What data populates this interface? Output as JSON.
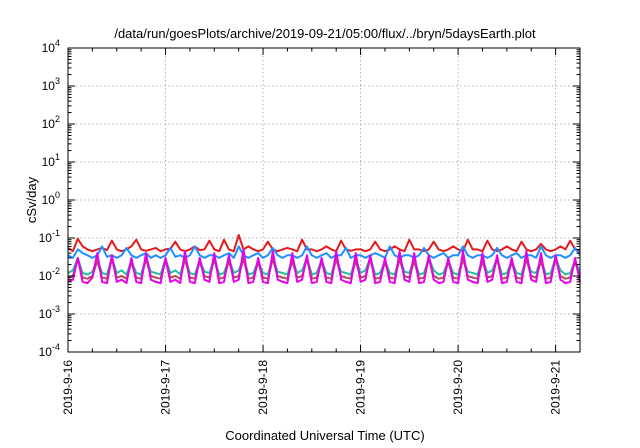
{
  "chart_data": {
    "type": "line",
    "title": "/data/run/goesPlots/archive/2019-09-21/05:00/flux/../bryn/5daysEarth.plot",
    "xlabel": "Coordinated Universal Time (UTC)",
    "ylabel": "cSv/day",
    "y_scale": "log",
    "ylim_exp": [
      -4,
      4
    ],
    "y_ticks": [
      {
        "base": "10",
        "exp": "-4"
      },
      {
        "base": "10",
        "exp": "-3"
      },
      {
        "base": "10",
        "exp": "-2"
      },
      {
        "base": "10",
        "exp": "-1"
      },
      {
        "base": "10",
        "exp": "0"
      },
      {
        "base": "10",
        "exp": "1"
      },
      {
        "base": "10",
        "exp": "2"
      },
      {
        "base": "10",
        "exp": "3"
      },
      {
        "base": "10",
        "exp": "4"
      }
    ],
    "x_range_days": [
      0,
      5.25
    ],
    "x_ticks": [
      "2019-9-16",
      "2019-9-17",
      "2019-9-18",
      "2019-9-19",
      "2019-9-20",
      "2019-9-21"
    ],
    "grid": true,
    "colors": [
      "#e41a1c",
      "#1e90ff",
      "#20c0a0",
      "#b05050",
      "#e800e8"
    ],
    "series": [
      {
        "color": "#e41a1c",
        "values": [
          0.055,
          0.045,
          0.095,
          0.06,
          0.05,
          0.045,
          0.05,
          0.055,
          0.048,
          0.085,
          0.05,
          0.045,
          0.05,
          0.06,
          0.09,
          0.05,
          0.046,
          0.05,
          0.055,
          0.045,
          0.05,
          0.052,
          0.08,
          0.05,
          0.045,
          0.05,
          0.06,
          0.048,
          0.05,
          0.085,
          0.05,
          0.045,
          0.09,
          0.05,
          0.045,
          0.12,
          0.05,
          0.06,
          0.05,
          0.045,
          0.05,
          0.08,
          0.05,
          0.045,
          0.05,
          0.055,
          0.05,
          0.045,
          0.09,
          0.05,
          0.05,
          0.045,
          0.05,
          0.06,
          0.05,
          0.045,
          0.085,
          0.05,
          0.046,
          0.05,
          0.05,
          0.045,
          0.05,
          0.08,
          0.05,
          0.045,
          0.05,
          0.06,
          0.05,
          0.045,
          0.09,
          0.05,
          0.05,
          0.045,
          0.05,
          0.08,
          0.05,
          0.045,
          0.05,
          0.06,
          0.05,
          0.045,
          0.09,
          0.05,
          0.05,
          0.045,
          0.085,
          0.05,
          0.045,
          0.05,
          0.06,
          0.05,
          0.045,
          0.08,
          0.05,
          0.045,
          0.05,
          0.07,
          0.05,
          0.045,
          0.05,
          0.06,
          0.05,
          0.085,
          0.05,
          0.045
        ]
      },
      {
        "color": "#1e90ff",
        "values": [
          0.035,
          0.03,
          0.05,
          0.04,
          0.035,
          0.03,
          0.035,
          0.06,
          0.032,
          0.035,
          0.03,
          0.035,
          0.055,
          0.035,
          0.03,
          0.035,
          0.04,
          0.03,
          0.035,
          0.03,
          0.035,
          0.055,
          0.032,
          0.035,
          0.03,
          0.035,
          0.06,
          0.035,
          0.03,
          0.035,
          0.035,
          0.03,
          0.035,
          0.04,
          0.03,
          0.06,
          0.035,
          0.03,
          0.035,
          0.04,
          0.03,
          0.035,
          0.055,
          0.035,
          0.03,
          0.035,
          0.035,
          0.03,
          0.035,
          0.06,
          0.035,
          0.03,
          0.035,
          0.04,
          0.03,
          0.035,
          0.035,
          0.055,
          0.03,
          0.035,
          0.035,
          0.03,
          0.035,
          0.04,
          0.035,
          0.03,
          0.06,
          0.035,
          0.03,
          0.035,
          0.035,
          0.03,
          0.035,
          0.055,
          0.035,
          0.03,
          0.035,
          0.04,
          0.03,
          0.035,
          0.035,
          0.06,
          0.035,
          0.03,
          0.035,
          0.035,
          0.03,
          0.035,
          0.055,
          0.035,
          0.03,
          0.035,
          0.04,
          0.03,
          0.035,
          0.035,
          0.03,
          0.06,
          0.035,
          0.03,
          0.035,
          0.035,
          0.03,
          0.035,
          0.055,
          0.035
        ]
      },
      {
        "color": "#20c0a0",
        "values": [
          0.012,
          0.014,
          0.03,
          0.012,
          0.011,
          0.013,
          0.028,
          0.012,
          0.011,
          0.03,
          0.012,
          0.014,
          0.011,
          0.025,
          0.012,
          0.011,
          0.03,
          0.013,
          0.012,
          0.011,
          0.028,
          0.012,
          0.014,
          0.011,
          0.03,
          0.012,
          0.011,
          0.026,
          0.013,
          0.012,
          0.03,
          0.011,
          0.012,
          0.028,
          0.012,
          0.014,
          0.03,
          0.011,
          0.012,
          0.025,
          0.012,
          0.011,
          0.03,
          0.013,
          0.012,
          0.011,
          0.028,
          0.012,
          0.014,
          0.03,
          0.011,
          0.012,
          0.026,
          0.012,
          0.011,
          0.03,
          0.013,
          0.012,
          0.011,
          0.028,
          0.012,
          0.014,
          0.03,
          0.011,
          0.012,
          0.025,
          0.012,
          0.011,
          0.03,
          0.013,
          0.012,
          0.028,
          0.011,
          0.012,
          0.03,
          0.014,
          0.011,
          0.012,
          0.026,
          0.012,
          0.011,
          0.03,
          0.013,
          0.012,
          0.011,
          0.028,
          0.012,
          0.014,
          0.03,
          0.011,
          0.012,
          0.025,
          0.012,
          0.011,
          0.03,
          0.013,
          0.012,
          0.028,
          0.011,
          0.012,
          0.03,
          0.014,
          0.011,
          0.012,
          0.026,
          0.012
        ]
      },
      {
        "color": "#b05050",
        "values": [
          0.009,
          0.01,
          0.028,
          0.009,
          0.0085,
          0.01,
          0.025,
          0.009,
          0.0085,
          0.028,
          0.009,
          0.01,
          0.0085,
          0.023,
          0.009,
          0.0085,
          0.028,
          0.01,
          0.009,
          0.0085,
          0.025,
          0.009,
          0.01,
          0.0085,
          0.028,
          0.009,
          0.0085,
          0.024,
          0.01,
          0.009,
          0.028,
          0.0085,
          0.009,
          0.025,
          0.009,
          0.01,
          0.028,
          0.0085,
          0.009,
          0.023,
          0.009,
          0.0085,
          0.028,
          0.01,
          0.009,
          0.0085,
          0.025,
          0.009,
          0.01,
          0.028,
          0.0085,
          0.009,
          0.024,
          0.009,
          0.0085,
          0.028,
          0.01,
          0.009,
          0.0085,
          0.025,
          0.009,
          0.01,
          0.028,
          0.0085,
          0.009,
          0.023,
          0.009,
          0.0085,
          0.028,
          0.01,
          0.009,
          0.025,
          0.0085,
          0.009,
          0.028,
          0.01,
          0.0085,
          0.009,
          0.024,
          0.009,
          0.0085,
          0.028,
          0.01,
          0.009,
          0.0085,
          0.025,
          0.009,
          0.01,
          0.028,
          0.0085,
          0.009,
          0.023,
          0.009,
          0.0085,
          0.028,
          0.01,
          0.009,
          0.025,
          0.0085,
          0.009,
          0.028,
          0.01,
          0.0085,
          0.009,
          0.024,
          0.009
        ]
      },
      {
        "color": "#e800e8",
        "values": [
          0.007,
          0.008,
          0.03,
          0.007,
          0.0065,
          0.009,
          0.04,
          0.007,
          0.0065,
          0.035,
          0.007,
          0.008,
          0.0065,
          0.03,
          0.007,
          0.0065,
          0.04,
          0.008,
          0.007,
          0.0065,
          0.03,
          0.007,
          0.008,
          0.0065,
          0.045,
          0.007,
          0.0065,
          0.03,
          0.008,
          0.007,
          0.04,
          0.0065,
          0.007,
          0.035,
          0.007,
          0.008,
          0.05,
          0.0065,
          0.007,
          0.03,
          0.007,
          0.0065,
          0.045,
          0.008,
          0.007,
          0.0065,
          0.04,
          0.007,
          0.008,
          0.035,
          0.0065,
          0.007,
          0.03,
          0.007,
          0.0065,
          0.045,
          0.008,
          0.007,
          0.0065,
          0.04,
          0.007,
          0.008,
          0.035,
          0.0065,
          0.007,
          0.03,
          0.007,
          0.0065,
          0.045,
          0.008,
          0.007,
          0.04,
          0.0065,
          0.007,
          0.035,
          0.008,
          0.0065,
          0.007,
          0.03,
          0.007,
          0.0065,
          0.045,
          0.008,
          0.007,
          0.0065,
          0.04,
          0.007,
          0.008,
          0.035,
          0.0065,
          0.007,
          0.03,
          0.007,
          0.0065,
          0.045,
          0.008,
          0.007,
          0.04,
          0.0065,
          0.007,
          0.035,
          0.008,
          0.0065,
          0.007,
          0.03,
          0.007
        ]
      }
    ]
  }
}
